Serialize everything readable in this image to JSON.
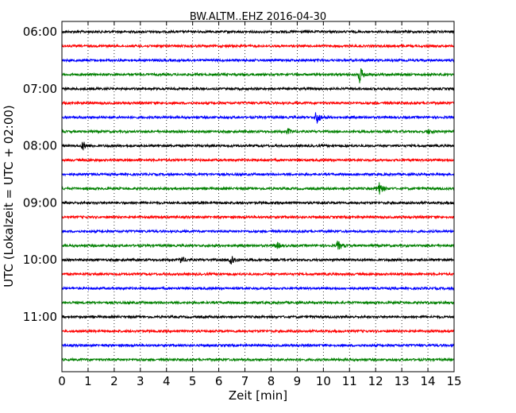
{
  "chart_data": {
    "type": "line",
    "title": "BW.ALTM..EHZ 2016-04-30",
    "xlabel": "Zeit  [min]",
    "ylabel": "UTC (Lokalzeit = UTC + 02:00)",
    "xlim": [
      0,
      15
    ],
    "x_ticks": [
      0,
      1,
      2,
      3,
      4,
      5,
      6,
      7,
      8,
      9,
      10,
      11,
      12,
      13,
      14,
      15
    ],
    "grid": true,
    "row_interval_min": 15,
    "start_time": "06:00",
    "y_tick_labels": [
      "06:00",
      "07:00",
      "08:00",
      "09:00",
      "10:00",
      "11:00"
    ],
    "series_colors": [
      "#000000",
      "#ff0000",
      "#0000ff",
      "#008000"
    ],
    "traces": [
      {
        "start": "06:00",
        "color": "#000000",
        "events": []
      },
      {
        "start": "06:15",
        "color": "#ff0000",
        "events": []
      },
      {
        "start": "06:30",
        "color": "#0000ff",
        "events": []
      },
      {
        "start": "06:45",
        "color": "#008000",
        "events": [
          {
            "t": 11.38,
            "amp": 1.0
          }
        ]
      },
      {
        "start": "07:00",
        "color": "#000000",
        "events": []
      },
      {
        "start": "07:15",
        "color": "#ff0000",
        "events": []
      },
      {
        "start": "07:30",
        "color": "#0000ff",
        "events": [
          {
            "t": 9.73,
            "amp": 0.9
          }
        ]
      },
      {
        "start": "07:45",
        "color": "#008000",
        "events": [
          {
            "t": 8.65,
            "amp": 0.3
          },
          {
            "t": 14.0,
            "amp": 0.25
          }
        ]
      },
      {
        "start": "08:00",
        "color": "#000000",
        "events": [
          {
            "t": 0.8,
            "amp": 0.5
          }
        ]
      },
      {
        "start": "08:15",
        "color": "#ff0000",
        "events": []
      },
      {
        "start": "08:30",
        "color": "#0000ff",
        "events": []
      },
      {
        "start": "08:45",
        "color": "#008000",
        "events": [
          {
            "t": 12.1,
            "amp": 0.9
          }
        ]
      },
      {
        "start": "09:00",
        "color": "#000000",
        "events": []
      },
      {
        "start": "09:15",
        "color": "#ff0000",
        "events": []
      },
      {
        "start": "09:30",
        "color": "#0000ff",
        "events": []
      },
      {
        "start": "09:45",
        "color": "#008000",
        "events": [
          {
            "t": 8.2,
            "amp": 0.4
          },
          {
            "t": 10.55,
            "amp": 0.55
          }
        ]
      },
      {
        "start": "10:00",
        "color": "#000000",
        "events": [
          {
            "t": 4.55,
            "amp": 0.4
          },
          {
            "t": 6.45,
            "amp": 0.8
          }
        ]
      },
      {
        "start": "10:15",
        "color": "#ff0000",
        "events": []
      },
      {
        "start": "10:30",
        "color": "#0000ff",
        "events": []
      },
      {
        "start": "10:45",
        "color": "#008000",
        "events": []
      },
      {
        "start": "11:00",
        "color": "#000000",
        "events": []
      },
      {
        "start": "11:15",
        "color": "#ff0000",
        "events": []
      },
      {
        "start": "11:30",
        "color": "#0000ff",
        "events": []
      },
      {
        "start": "11:45",
        "color": "#008000",
        "events": []
      }
    ]
  }
}
